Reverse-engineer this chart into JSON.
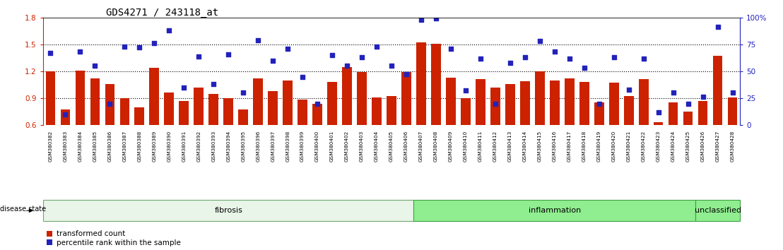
{
  "title": "GDS4271 / 243118_at",
  "samples": [
    "GSM380382",
    "GSM380383",
    "GSM380384",
    "GSM380385",
    "GSM380386",
    "GSM380387",
    "GSM380388",
    "GSM380389",
    "GSM380390",
    "GSM380391",
    "GSM380392",
    "GSM380393",
    "GSM380394",
    "GSM380395",
    "GSM380396",
    "GSM380397",
    "GSM380398",
    "GSM380399",
    "GSM380400",
    "GSM380401",
    "GSM380402",
    "GSM380403",
    "GSM380404",
    "GSM380405",
    "GSM380406",
    "GSM380407",
    "GSM380408",
    "GSM380409",
    "GSM380410",
    "GSM380411",
    "GSM380412",
    "GSM380413",
    "GSM380414",
    "GSM380415",
    "GSM380416",
    "GSM380417",
    "GSM380418",
    "GSM380419",
    "GSM380420",
    "GSM380421",
    "GSM380422",
    "GSM380423",
    "GSM380424",
    "GSM380425",
    "GSM380426",
    "GSM380427",
    "GSM380428"
  ],
  "bar_values": [
    1.2,
    0.77,
    1.21,
    1.12,
    1.06,
    0.9,
    0.8,
    1.24,
    0.96,
    0.87,
    1.02,
    0.95,
    0.9,
    0.77,
    1.12,
    0.98,
    1.1,
    0.88,
    0.84,
    1.08,
    1.25,
    1.19,
    0.91,
    0.92,
    1.19,
    1.52,
    1.51,
    1.13,
    0.9,
    1.11,
    1.02,
    1.06,
    1.09,
    1.2,
    1.1,
    1.12,
    1.08,
    0.85,
    1.07,
    0.92,
    1.11,
    0.63,
    0.85,
    0.75,
    0.87,
    1.37,
    0.91
  ],
  "percentile_values": [
    67,
    10,
    68,
    55,
    20,
    73,
    72,
    76,
    88,
    35,
    64,
    38,
    66,
    30,
    79,
    60,
    71,
    45,
    20,
    65,
    55,
    63,
    73,
    55,
    47,
    98,
    99,
    71,
    32,
    62,
    20,
    58,
    63,
    78,
    68,
    62,
    53,
    20,
    63,
    33,
    62,
    12,
    30,
    20,
    26,
    91,
    30
  ],
  "group_defs": [
    {
      "name": "fibrosis",
      "start": 0,
      "end": 24,
      "facecolor": "#e8f5e8",
      "edgecolor": "#70a870"
    },
    {
      "name": "inflammation",
      "start": 25,
      "end": 43,
      "facecolor": "#90ee90",
      "edgecolor": "#40a040"
    },
    {
      "name": "unclassified",
      "start": 44,
      "end": 46,
      "facecolor": "#90ee90",
      "edgecolor": "#40a040"
    }
  ],
  "ylim_left": [
    0.6,
    1.8
  ],
  "ylim_right": [
    0,
    100
  ],
  "yticks_left": [
    0.6,
    0.9,
    1.2,
    1.5,
    1.8
  ],
  "yticks_right": [
    0,
    25,
    50,
    75,
    100
  ],
  "ytick_labels_right": [
    "0",
    "25",
    "50",
    "75",
    "100%"
  ],
  "hlines": [
    0.9,
    1.2,
    1.5
  ],
  "bar_color": "#cc2200",
  "scatter_color": "#2222bb",
  "bar_width": 0.65,
  "legend_labels": [
    "transformed count",
    "percentile rank within the sample"
  ],
  "disease_state_label": "disease state"
}
